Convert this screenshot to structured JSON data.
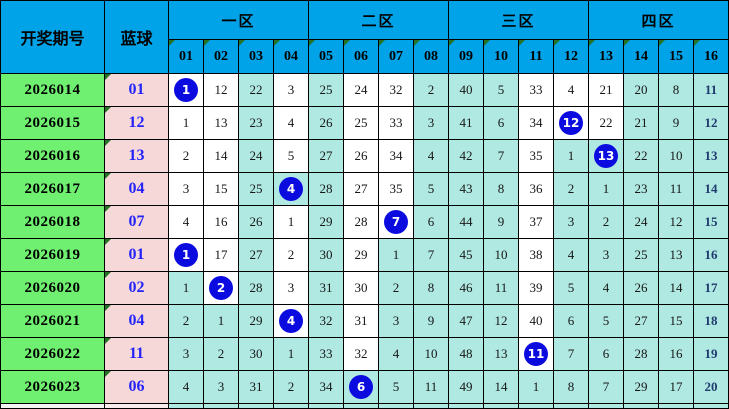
{
  "chart_data": {
    "type": "table",
    "description": "双色球蓝球分区走势图 (blue-ball zone trend chart with miss counts)",
    "header": {
      "period_label": "开奖期号",
      "blue_label": "蓝球",
      "zones": [
        {
          "label": "一区",
          "columns": [
            "01",
            "02",
            "03",
            "04"
          ]
        },
        {
          "label": "二区",
          "columns": [
            "05",
            "06",
            "07",
            "08"
          ]
        },
        {
          "label": "三区",
          "columns": [
            "09",
            "10",
            "11",
            "12"
          ]
        },
        {
          "label": "四区",
          "columns": [
            "13",
            "14",
            "15",
            "16"
          ]
        }
      ]
    },
    "rows": [
      {
        "period": "2026014",
        "blue": "01",
        "cells": [
          {
            "v": "1",
            "hit": true,
            "hl": false
          },
          {
            "v": "12",
            "hit": false,
            "hl": false
          },
          {
            "v": "22",
            "hit": false,
            "hl": true
          },
          {
            "v": "3",
            "hit": false,
            "hl": false
          },
          {
            "v": "25",
            "hit": false,
            "hl": true
          },
          {
            "v": "24",
            "hit": false,
            "hl": false
          },
          {
            "v": "32",
            "hit": false,
            "hl": false
          },
          {
            "v": "2",
            "hit": false,
            "hl": true
          },
          {
            "v": "40",
            "hit": false,
            "hl": true
          },
          {
            "v": "5",
            "hit": false,
            "hl": true
          },
          {
            "v": "33",
            "hit": false,
            "hl": false
          },
          {
            "v": "4",
            "hit": false,
            "hl": false
          },
          {
            "v": "21",
            "hit": false,
            "hl": false
          },
          {
            "v": "20",
            "hit": false,
            "hl": true
          },
          {
            "v": "8",
            "hit": false,
            "hl": true
          },
          {
            "v": "11",
            "hit": false,
            "hl": true
          }
        ]
      },
      {
        "period": "2026015",
        "blue": "12",
        "cells": [
          {
            "v": "1",
            "hit": false,
            "hl": false
          },
          {
            "v": "13",
            "hit": false,
            "hl": false
          },
          {
            "v": "23",
            "hit": false,
            "hl": true
          },
          {
            "v": "4",
            "hit": false,
            "hl": false
          },
          {
            "v": "26",
            "hit": false,
            "hl": true
          },
          {
            "v": "25",
            "hit": false,
            "hl": false
          },
          {
            "v": "33",
            "hit": false,
            "hl": false
          },
          {
            "v": "3",
            "hit": false,
            "hl": true
          },
          {
            "v": "41",
            "hit": false,
            "hl": true
          },
          {
            "v": "6",
            "hit": false,
            "hl": true
          },
          {
            "v": "34",
            "hit": false,
            "hl": false
          },
          {
            "v": "12",
            "hit": true,
            "hl": false
          },
          {
            "v": "22",
            "hit": false,
            "hl": false
          },
          {
            "v": "21",
            "hit": false,
            "hl": true
          },
          {
            "v": "9",
            "hit": false,
            "hl": true
          },
          {
            "v": "12",
            "hit": false,
            "hl": true
          }
        ]
      },
      {
        "period": "2026016",
        "blue": "13",
        "cells": [
          {
            "v": "2",
            "hit": false,
            "hl": false
          },
          {
            "v": "14",
            "hit": false,
            "hl": false
          },
          {
            "v": "24",
            "hit": false,
            "hl": true
          },
          {
            "v": "5",
            "hit": false,
            "hl": false
          },
          {
            "v": "27",
            "hit": false,
            "hl": true
          },
          {
            "v": "26",
            "hit": false,
            "hl": false
          },
          {
            "v": "34",
            "hit": false,
            "hl": false
          },
          {
            "v": "4",
            "hit": false,
            "hl": true
          },
          {
            "v": "42",
            "hit": false,
            "hl": true
          },
          {
            "v": "7",
            "hit": false,
            "hl": true
          },
          {
            "v": "35",
            "hit": false,
            "hl": false
          },
          {
            "v": "1",
            "hit": false,
            "hl": true
          },
          {
            "v": "13",
            "hit": true,
            "hl": true
          },
          {
            "v": "22",
            "hit": false,
            "hl": true
          },
          {
            "v": "10",
            "hit": false,
            "hl": true
          },
          {
            "v": "13",
            "hit": false,
            "hl": true
          }
        ]
      },
      {
        "period": "2026017",
        "blue": "04",
        "cells": [
          {
            "v": "3",
            "hit": false,
            "hl": false
          },
          {
            "v": "15",
            "hit": false,
            "hl": false
          },
          {
            "v": "25",
            "hit": false,
            "hl": true
          },
          {
            "v": "4",
            "hit": true,
            "hl": true
          },
          {
            "v": "28",
            "hit": false,
            "hl": true
          },
          {
            "v": "27",
            "hit": false,
            "hl": false
          },
          {
            "v": "35",
            "hit": false,
            "hl": false
          },
          {
            "v": "5",
            "hit": false,
            "hl": true
          },
          {
            "v": "43",
            "hit": false,
            "hl": true
          },
          {
            "v": "8",
            "hit": false,
            "hl": true
          },
          {
            "v": "36",
            "hit": false,
            "hl": false
          },
          {
            "v": "2",
            "hit": false,
            "hl": true
          },
          {
            "v": "1",
            "hit": false,
            "hl": true
          },
          {
            "v": "23",
            "hit": false,
            "hl": true
          },
          {
            "v": "11",
            "hit": false,
            "hl": true
          },
          {
            "v": "14",
            "hit": false,
            "hl": true
          }
        ]
      },
      {
        "period": "2026018",
        "blue": "07",
        "cells": [
          {
            "v": "4",
            "hit": false,
            "hl": false
          },
          {
            "v": "16",
            "hit": false,
            "hl": false
          },
          {
            "v": "26",
            "hit": false,
            "hl": true
          },
          {
            "v": "1",
            "hit": false,
            "hl": false
          },
          {
            "v": "29",
            "hit": false,
            "hl": true
          },
          {
            "v": "28",
            "hit": false,
            "hl": false
          },
          {
            "v": "7",
            "hit": true,
            "hl": false
          },
          {
            "v": "6",
            "hit": false,
            "hl": true
          },
          {
            "v": "44",
            "hit": false,
            "hl": true
          },
          {
            "v": "9",
            "hit": false,
            "hl": true
          },
          {
            "v": "37",
            "hit": false,
            "hl": false
          },
          {
            "v": "3",
            "hit": false,
            "hl": true
          },
          {
            "v": "2",
            "hit": false,
            "hl": true
          },
          {
            "v": "24",
            "hit": false,
            "hl": true
          },
          {
            "v": "12",
            "hit": false,
            "hl": true
          },
          {
            "v": "15",
            "hit": false,
            "hl": true
          }
        ]
      },
      {
        "period": "2026019",
        "blue": "01",
        "cells": [
          {
            "v": "1",
            "hit": true,
            "hl": false
          },
          {
            "v": "17",
            "hit": false,
            "hl": false
          },
          {
            "v": "27",
            "hit": false,
            "hl": true
          },
          {
            "v": "2",
            "hit": false,
            "hl": false
          },
          {
            "v": "30",
            "hit": false,
            "hl": true
          },
          {
            "v": "29",
            "hit": false,
            "hl": false
          },
          {
            "v": "1",
            "hit": false,
            "hl": true
          },
          {
            "v": "7",
            "hit": false,
            "hl": true
          },
          {
            "v": "45",
            "hit": false,
            "hl": true
          },
          {
            "v": "10",
            "hit": false,
            "hl": true
          },
          {
            "v": "38",
            "hit": false,
            "hl": false
          },
          {
            "v": "4",
            "hit": false,
            "hl": true
          },
          {
            "v": "3",
            "hit": false,
            "hl": true
          },
          {
            "v": "25",
            "hit": false,
            "hl": true
          },
          {
            "v": "13",
            "hit": false,
            "hl": true
          },
          {
            "v": "16",
            "hit": false,
            "hl": true
          }
        ]
      },
      {
        "period": "2026020",
        "blue": "02",
        "cells": [
          {
            "v": "1",
            "hit": false,
            "hl": true
          },
          {
            "v": "2",
            "hit": true,
            "hl": false
          },
          {
            "v": "28",
            "hit": false,
            "hl": true
          },
          {
            "v": "3",
            "hit": false,
            "hl": false
          },
          {
            "v": "31",
            "hit": false,
            "hl": true
          },
          {
            "v": "30",
            "hit": false,
            "hl": false
          },
          {
            "v": "2",
            "hit": false,
            "hl": true
          },
          {
            "v": "8",
            "hit": false,
            "hl": true
          },
          {
            "v": "46",
            "hit": false,
            "hl": true
          },
          {
            "v": "11",
            "hit": false,
            "hl": true
          },
          {
            "v": "39",
            "hit": false,
            "hl": false
          },
          {
            "v": "5",
            "hit": false,
            "hl": true
          },
          {
            "v": "4",
            "hit": false,
            "hl": true
          },
          {
            "v": "26",
            "hit": false,
            "hl": true
          },
          {
            "v": "14",
            "hit": false,
            "hl": true
          },
          {
            "v": "17",
            "hit": false,
            "hl": true
          }
        ]
      },
      {
        "period": "2026021",
        "blue": "04",
        "cells": [
          {
            "v": "2",
            "hit": false,
            "hl": true
          },
          {
            "v": "1",
            "hit": false,
            "hl": true
          },
          {
            "v": "29",
            "hit": false,
            "hl": true
          },
          {
            "v": "4",
            "hit": true,
            "hl": false
          },
          {
            "v": "32",
            "hit": false,
            "hl": true
          },
          {
            "v": "31",
            "hit": false,
            "hl": false
          },
          {
            "v": "3",
            "hit": false,
            "hl": true
          },
          {
            "v": "9",
            "hit": false,
            "hl": true
          },
          {
            "v": "47",
            "hit": false,
            "hl": true
          },
          {
            "v": "12",
            "hit": false,
            "hl": true
          },
          {
            "v": "40",
            "hit": false,
            "hl": false
          },
          {
            "v": "6",
            "hit": false,
            "hl": true
          },
          {
            "v": "5",
            "hit": false,
            "hl": true
          },
          {
            "v": "27",
            "hit": false,
            "hl": true
          },
          {
            "v": "15",
            "hit": false,
            "hl": true
          },
          {
            "v": "18",
            "hit": false,
            "hl": true
          }
        ]
      },
      {
        "period": "2026022",
        "blue": "11",
        "cells": [
          {
            "v": "3",
            "hit": false,
            "hl": true
          },
          {
            "v": "2",
            "hit": false,
            "hl": true
          },
          {
            "v": "30",
            "hit": false,
            "hl": true
          },
          {
            "v": "1",
            "hit": false,
            "hl": true
          },
          {
            "v": "33",
            "hit": false,
            "hl": true
          },
          {
            "v": "32",
            "hit": false,
            "hl": false
          },
          {
            "v": "4",
            "hit": false,
            "hl": true
          },
          {
            "v": "10",
            "hit": false,
            "hl": true
          },
          {
            "v": "48",
            "hit": false,
            "hl": true
          },
          {
            "v": "13",
            "hit": false,
            "hl": true
          },
          {
            "v": "11",
            "hit": true,
            "hl": false
          },
          {
            "v": "7",
            "hit": false,
            "hl": true
          },
          {
            "v": "6",
            "hit": false,
            "hl": true
          },
          {
            "v": "28",
            "hit": false,
            "hl": true
          },
          {
            "v": "16",
            "hit": false,
            "hl": true
          },
          {
            "v": "19",
            "hit": false,
            "hl": true
          }
        ]
      },
      {
        "period": "2026023",
        "blue": "06",
        "cells": [
          {
            "v": "4",
            "hit": false,
            "hl": true
          },
          {
            "v": "3",
            "hit": false,
            "hl": true
          },
          {
            "v": "31",
            "hit": false,
            "hl": true
          },
          {
            "v": "2",
            "hit": false,
            "hl": true
          },
          {
            "v": "34",
            "hit": false,
            "hl": true
          },
          {
            "v": "6",
            "hit": true,
            "hl": true
          },
          {
            "v": "5",
            "hit": false,
            "hl": true
          },
          {
            "v": "11",
            "hit": false,
            "hl": true
          },
          {
            "v": "49",
            "hit": false,
            "hl": true
          },
          {
            "v": "14",
            "hit": false,
            "hl": true
          },
          {
            "v": "1",
            "hit": false,
            "hl": true
          },
          {
            "v": "8",
            "hit": false,
            "hl": true
          },
          {
            "v": "7",
            "hit": false,
            "hl": true
          },
          {
            "v": "29",
            "hit": false,
            "hl": true
          },
          {
            "v": "17",
            "hit": false,
            "hl": true
          },
          {
            "v": "20",
            "hit": false,
            "hl": true
          }
        ]
      }
    ],
    "colors": {
      "header_bg": "#00a3e8",
      "period_col_bg": "#70f070",
      "blue_col_bg": "#f6d8d8",
      "highlight_bg": "#b0e9e2",
      "hit_ball_bg": "#0b0be0",
      "blue_text": "#2323fa",
      "last_col_text": "#1f3a6e",
      "corner_triangle": "#267326",
      "grid_line": "#000000"
    }
  }
}
